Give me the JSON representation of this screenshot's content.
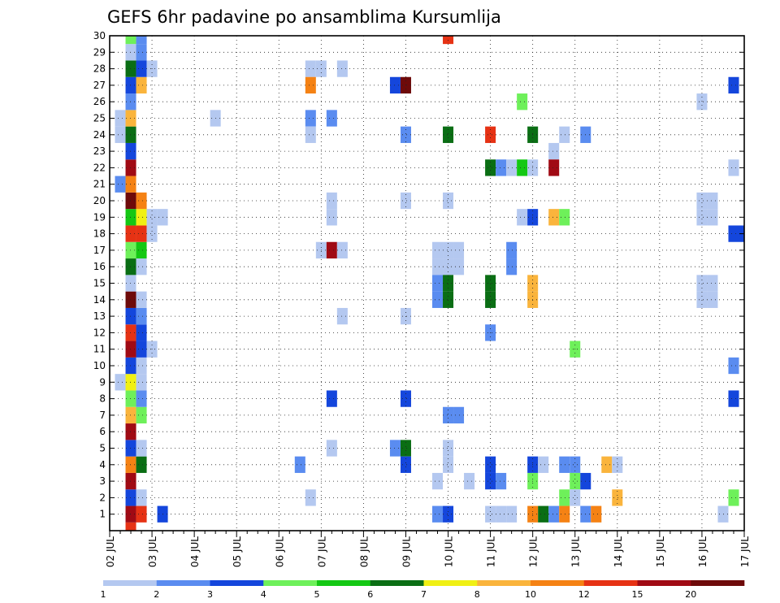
{
  "chart_data": {
    "type": "heatmap",
    "title": "GEFS 6hr padavine po ansamblima Kursumlija",
    "xlabel": "",
    "ylabel": "",
    "x_axis": {
      "unit": "6-hour step",
      "start_label": "02 JUL",
      "steps_per_day": 4,
      "range": [
        0,
        60
      ],
      "tick_labels": [
        "02 JUL",
        "03 JUL",
        "04 JUL",
        "05 JUL",
        "06 JUL",
        "07 JUL",
        "08 JUL",
        "09 JUL",
        "10 JUL",
        "11 JUL",
        "12 JUL",
        "13 JUL",
        "14 JUL",
        "15 JUL",
        "16 JUL",
        "17 JUL"
      ]
    },
    "y_axis": {
      "range": [
        0,
        30
      ],
      "tick_labels": [
        "1",
        "2",
        "3",
        "4",
        "5",
        "6",
        "7",
        "8",
        "9",
        "10",
        "11",
        "12",
        "13",
        "14",
        "15",
        "16",
        "17",
        "18",
        "19",
        "20",
        "21",
        "22",
        "23",
        "24",
        "25",
        "26",
        "27",
        "28",
        "29",
        "30"
      ]
    },
    "grid": true,
    "colorbar": {
      "placement": "bottom",
      "colors": [
        "#b4c8f0",
        "#5a8cf0",
        "#1446dc",
        "#6ef05a",
        "#14c814",
        "#0a6e14",
        "#f0f014",
        "#fab43c",
        "#f58214",
        "#e63214",
        "#a00a14",
        "#6e0a0a"
      ],
      "labels": [
        "1",
        "2",
        "3",
        "4",
        "5",
        "6",
        "7",
        "8",
        "10",
        "12",
        "15",
        "20"
      ]
    },
    "cells": [
      [
        2,
        0,
        "#e63214"
      ],
      [
        2,
        1,
        "#a00a14"
      ],
      [
        3,
        1,
        "#e63214"
      ],
      [
        5,
        1,
        "#1446dc"
      ],
      [
        2,
        2,
        "#1446dc"
      ],
      [
        3,
        2,
        "#b4c8f0"
      ],
      [
        2,
        3,
        "#a00a14"
      ],
      [
        2,
        4,
        "#f58214"
      ],
      [
        3,
        4,
        "#0a6e14"
      ],
      [
        2,
        5,
        "#1446dc"
      ],
      [
        3,
        5,
        "#b4c8f0"
      ],
      [
        2,
        6,
        "#a00a14"
      ],
      [
        2,
        7,
        "#fab43c"
      ],
      [
        3,
        7,
        "#6ef05a"
      ],
      [
        2,
        8,
        "#6ef05a"
      ],
      [
        3,
        8,
        "#5a8cf0"
      ],
      [
        1,
        9,
        "#b4c8f0"
      ],
      [
        2,
        9,
        "#f0f014"
      ],
      [
        3,
        9,
        "#b4c8f0"
      ],
      [
        2,
        10,
        "#1446dc"
      ],
      [
        3,
        10,
        "#b4c8f0"
      ],
      [
        2,
        11,
        "#a00a14"
      ],
      [
        3,
        11,
        "#1446dc"
      ],
      [
        4,
        11,
        "#b4c8f0"
      ],
      [
        2,
        12,
        "#e63214"
      ],
      [
        3,
        12,
        "#1446dc"
      ],
      [
        2,
        13,
        "#1446dc"
      ],
      [
        3,
        13,
        "#5a8cf0"
      ],
      [
        2,
        14,
        "#6e0a0a"
      ],
      [
        3,
        14,
        "#b4c8f0"
      ],
      [
        2,
        15,
        "#b4c8f0"
      ],
      [
        2,
        16,
        "#0a6e14"
      ],
      [
        3,
        16,
        "#b4c8f0"
      ],
      [
        2,
        17,
        "#6ef05a"
      ],
      [
        3,
        17,
        "#14c814"
      ],
      [
        2,
        18,
        "#e63214"
      ],
      [
        3,
        18,
        "#e63214"
      ],
      [
        4,
        18,
        "#b4c8f0"
      ],
      [
        2,
        19,
        "#14c814"
      ],
      [
        3,
        19,
        "#f0f014"
      ],
      [
        4,
        19,
        "#b4c8f0"
      ],
      [
        5,
        19,
        "#b4c8f0"
      ],
      [
        2,
        20,
        "#6e0a0a"
      ],
      [
        3,
        20,
        "#f58214"
      ],
      [
        1,
        21,
        "#5a8cf0"
      ],
      [
        2,
        21,
        "#f58214"
      ],
      [
        2,
        22,
        "#a00a14"
      ],
      [
        2,
        23,
        "#1446dc"
      ],
      [
        1,
        24,
        "#b4c8f0"
      ],
      [
        2,
        24,
        "#0a6e14"
      ],
      [
        1,
        25,
        "#b4c8f0"
      ],
      [
        2,
        25,
        "#fab43c"
      ],
      [
        10,
        25,
        "#b4c8f0"
      ],
      [
        2,
        26,
        "#5a8cf0"
      ],
      [
        2,
        27,
        "#1446dc"
      ],
      [
        3,
        27,
        "#fab43c"
      ],
      [
        2,
        28,
        "#0a6e14"
      ],
      [
        3,
        28,
        "#1446dc"
      ],
      [
        4,
        28,
        "#b4c8f0"
      ],
      [
        2,
        29,
        "#b4c8f0"
      ],
      [
        3,
        29,
        "#5a8cf0"
      ],
      [
        2,
        30,
        "#6ef05a"
      ],
      [
        3,
        30,
        "#5a8cf0"
      ],
      [
        19,
        28,
        "#b4c8f0"
      ],
      [
        20,
        28,
        "#b4c8f0"
      ],
      [
        22,
        28,
        "#b4c8f0"
      ],
      [
        19,
        27,
        "#f58214"
      ],
      [
        27,
        27,
        "#1446dc"
      ],
      [
        28,
        27,
        "#6e0a0a"
      ],
      [
        59,
        27,
        "#1446dc"
      ],
      [
        39,
        26,
        "#6ef05a"
      ],
      [
        56,
        26,
        "#b4c8f0"
      ],
      [
        19,
        25,
        "#5a8cf0"
      ],
      [
        21,
        25,
        "#5a8cf0"
      ],
      [
        19,
        24,
        "#b4c8f0"
      ],
      [
        28,
        24,
        "#5a8cf0"
      ],
      [
        32,
        24,
        "#0a6e14"
      ],
      [
        36,
        24,
        "#e63214"
      ],
      [
        40,
        24,
        "#0a6e14"
      ],
      [
        43,
        24,
        "#b4c8f0"
      ],
      [
        45,
        24,
        "#5a8cf0"
      ],
      [
        42,
        23,
        "#b4c8f0"
      ],
      [
        36,
        22,
        "#0a6e14"
      ],
      [
        37,
        22,
        "#5a8cf0"
      ],
      [
        38,
        22,
        "#b4c8f0"
      ],
      [
        39,
        22,
        "#14c814"
      ],
      [
        40,
        22,
        "#b4c8f0"
      ],
      [
        42,
        22,
        "#a00a14"
      ],
      [
        59,
        22,
        "#b4c8f0"
      ],
      [
        21,
        20,
        "#b4c8f0"
      ],
      [
        28,
        20,
        "#b4c8f0"
      ],
      [
        32,
        20,
        "#b4c8f0"
      ],
      [
        56,
        20,
        "#b4c8f0"
      ],
      [
        57,
        20,
        "#b4c8f0"
      ],
      [
        21,
        19,
        "#b4c8f0"
      ],
      [
        39,
        19,
        "#b4c8f0"
      ],
      [
        40,
        19,
        "#1446dc"
      ],
      [
        42,
        19,
        "#fab43c"
      ],
      [
        43,
        19,
        "#6ef05a"
      ],
      [
        56,
        19,
        "#b4c8f0"
      ],
      [
        57,
        19,
        "#b4c8f0"
      ],
      [
        59,
        18,
        "#1446dc"
      ],
      [
        60,
        18,
        "#1446dc"
      ],
      [
        20,
        17,
        "#b4c8f0"
      ],
      [
        21,
        17,
        "#a00a14"
      ],
      [
        22,
        17,
        "#b4c8f0"
      ],
      [
        31,
        17,
        "#b4c8f0"
      ],
      [
        32,
        17,
        "#b4c8f0"
      ],
      [
        33,
        17,
        "#b4c8f0"
      ],
      [
        38,
        17,
        "#5a8cf0"
      ],
      [
        31,
        16,
        "#b4c8f0"
      ],
      [
        32,
        16,
        "#b4c8f0"
      ],
      [
        33,
        16,
        "#b4c8f0"
      ],
      [
        38,
        16,
        "#5a8cf0"
      ],
      [
        31,
        15,
        "#5a8cf0"
      ],
      [
        32,
        15,
        "#0a6e14"
      ],
      [
        36,
        15,
        "#0a6e14"
      ],
      [
        40,
        15,
        "#fab43c"
      ],
      [
        56,
        15,
        "#b4c8f0"
      ],
      [
        57,
        15,
        "#b4c8f0"
      ],
      [
        31,
        14,
        "#5a8cf0"
      ],
      [
        32,
        14,
        "#0a6e14"
      ],
      [
        36,
        14,
        "#0a6e14"
      ],
      [
        40,
        14,
        "#fab43c"
      ],
      [
        56,
        14,
        "#b4c8f0"
      ],
      [
        57,
        14,
        "#b4c8f0"
      ],
      [
        22,
        13,
        "#b4c8f0"
      ],
      [
        28,
        13,
        "#b4c8f0"
      ],
      [
        36,
        12,
        "#5a8cf0"
      ],
      [
        44,
        11,
        "#6ef05a"
      ],
      [
        59,
        10,
        "#5a8cf0"
      ],
      [
        21,
        8,
        "#1446dc"
      ],
      [
        28,
        8,
        "#1446dc"
      ],
      [
        59,
        8,
        "#1446dc"
      ],
      [
        32,
        7,
        "#5a8cf0"
      ],
      [
        33,
        7,
        "#5a8cf0"
      ],
      [
        21,
        5,
        "#b4c8f0"
      ],
      [
        27,
        5,
        "#5a8cf0"
      ],
      [
        28,
        5,
        "#0a6e14"
      ],
      [
        32,
        5,
        "#b4c8f0"
      ],
      [
        18,
        4,
        "#5a8cf0"
      ],
      [
        28,
        4,
        "#1446dc"
      ],
      [
        32,
        4,
        "#b4c8f0"
      ],
      [
        36,
        4,
        "#1446dc"
      ],
      [
        40,
        4,
        "#1446dc"
      ],
      [
        41,
        4,
        "#b4c8f0"
      ],
      [
        43,
        4,
        "#5a8cf0"
      ],
      [
        44,
        4,
        "#5a8cf0"
      ],
      [
        47,
        4,
        "#fab43c"
      ],
      [
        48,
        4,
        "#b4c8f0"
      ],
      [
        31,
        3,
        "#b4c8f0"
      ],
      [
        34,
        3,
        "#b4c8f0"
      ],
      [
        36,
        3,
        "#1446dc"
      ],
      [
        37,
        3,
        "#5a8cf0"
      ],
      [
        40,
        3,
        "#6ef05a"
      ],
      [
        44,
        3,
        "#6ef05a"
      ],
      [
        45,
        3,
        "#1446dc"
      ],
      [
        19,
        2,
        "#b4c8f0"
      ],
      [
        43,
        2,
        "#6ef05a"
      ],
      [
        44,
        2,
        "#b4c8f0"
      ],
      [
        48,
        2,
        "#fab43c"
      ],
      [
        59,
        2,
        "#6ef05a"
      ],
      [
        31,
        1,
        "#5a8cf0"
      ],
      [
        32,
        1,
        "#1446dc"
      ],
      [
        36,
        1,
        "#b4c8f0"
      ],
      [
        37,
        1,
        "#b4c8f0"
      ],
      [
        38,
        1,
        "#b4c8f0"
      ],
      [
        40,
        1,
        "#f58214"
      ],
      [
        41,
        1,
        "#0a6e14"
      ],
      [
        42,
        1,
        "#5a8cf0"
      ],
      [
        43,
        1,
        "#f58214"
      ],
      [
        45,
        1,
        "#5a8cf0"
      ],
      [
        46,
        1,
        "#f58214"
      ],
      [
        58,
        1,
        "#b4c8f0"
      ],
      [
        32,
        30,
        "#e63214"
      ]
    ]
  }
}
